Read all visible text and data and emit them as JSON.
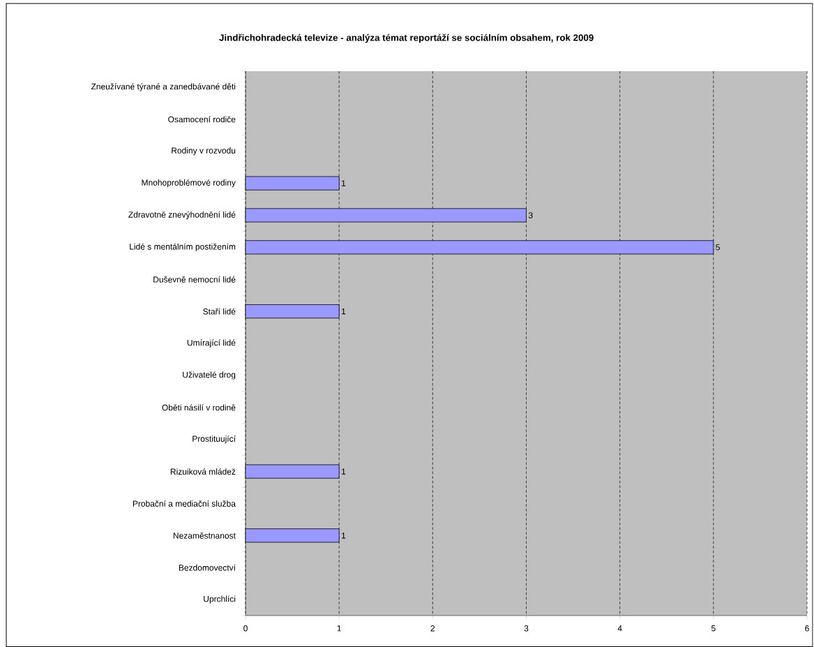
{
  "chart_data": {
    "type": "bar",
    "orientation": "horizontal",
    "title": "Jindřichohradecká televize - analýza témat reportáží se sociálním obsahem, rok 2009",
    "categories": [
      "Zneužívané týrané a zanedbávané děti",
      "Osamocení rodiče",
      "Rodiny v rozvodu",
      "Mnohoproblémové rodiny",
      "Zdravotně znevýhodnění lidé",
      "Lidé s mentálním postižením",
      "Duševně nemocní lidé",
      "Staří lidé",
      "Umírající lidé",
      "Uživatelé drog",
      "Oběti násilí v rodině",
      "Prostituující",
      "Rizuiková mládež",
      "Probační a mediační  služba",
      "Nezaměstnanost",
      "Bezdomovectví",
      "Uprchlíci"
    ],
    "values": [
      null,
      null,
      null,
      1,
      3,
      5,
      null,
      1,
      null,
      null,
      null,
      null,
      1,
      null,
      1,
      null,
      null
    ],
    "color": "#9999ff",
    "data_labels": true,
    "grid": "x",
    "xlim": [
      0,
      6
    ],
    "xticks": [
      0,
      1,
      2,
      3,
      4,
      5,
      6
    ]
  }
}
